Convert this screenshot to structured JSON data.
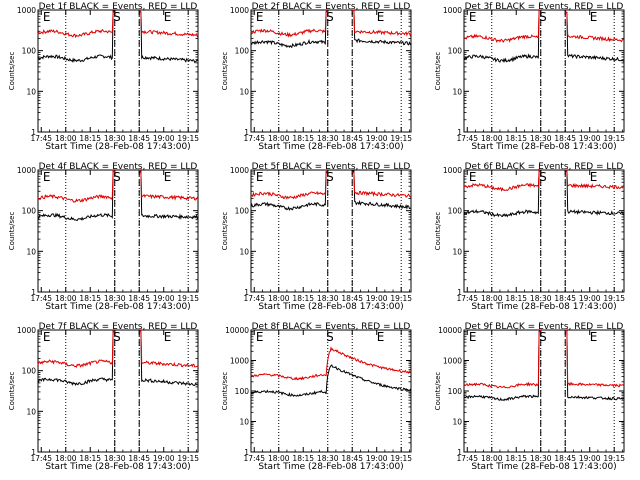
{
  "figure": {
    "xlabel": "Start Time (28-Feb-08 17:43:00)",
    "ylabel": "Counts/sec",
    "x_tick_labels": [
      "17:45",
      "18:00",
      "18:15",
      "18:30",
      "18:45",
      "19:00",
      "19:15"
    ],
    "y_tick_labels": [
      "1",
      "10",
      "100",
      "1000"
    ],
    "y_tick_labels_10k": [
      "1",
      "10",
      "100",
      "1000",
      "10000"
    ],
    "marker_labels": {
      "S": "S",
      "E": "E"
    },
    "colors": {
      "events": "#000000",
      "lld": "#e00000"
    }
  },
  "chart_data": [
    {
      "type": "line",
      "title": "Det 1f BLACK = Events, RED = LLD",
      "xlabel": "Start Time (28-Feb-08 17:43:00)",
      "ylabel": "Counts/sec",
      "y_scale": "log",
      "ylim": [
        1,
        1000
      ],
      "x_range_minutes": [
        0,
        98
      ],
      "vlines_dotted": [
        17,
        47,
        62,
        92
      ],
      "vlines_dashed": [
        47,
        62
      ],
      "markers": {
        "S": 46,
        "E": 77,
        "E_left": 3
      },
      "gap": [
        47,
        62
      ],
      "spike_at": [
        46,
        62
      ],
      "series": [
        {
          "name": "Events",
          "color": "#000000",
          "level_before": 65,
          "level_after": 70,
          "end": 55
        },
        {
          "name": "LLD",
          "color": "#e00000",
          "level_before": 270,
          "level_after": 300,
          "end": 240
        }
      ]
    },
    {
      "type": "line",
      "title": "Det 2f BLACK = Events, RED = LLD",
      "xlabel": "Start Time (28-Feb-08 17:43:00)",
      "ylabel": "Counts/sec",
      "y_scale": "log",
      "ylim": [
        1,
        1000
      ],
      "x_range_minutes": [
        0,
        98
      ],
      "vlines_dotted": [
        17,
        47,
        62,
        92
      ],
      "vlines_dashed": [
        47,
        62
      ],
      "markers": {
        "S": 46,
        "E": 77,
        "E_left": 3
      },
      "gap": [
        47,
        62
      ],
      "spike_at": [
        46,
        62
      ],
      "series": [
        {
          "name": "Events",
          "color": "#000000",
          "level_before": 150,
          "level_after": 180,
          "end": 150
        },
        {
          "name": "LLD",
          "color": "#e00000",
          "level_before": 280,
          "level_after": 300,
          "end": 260
        }
      ]
    },
    {
      "type": "line",
      "title": "Det 3f BLACK = Events, RED = LLD",
      "xlabel": "Start Time (28-Feb-08 17:43:00)",
      "ylabel": "Counts/sec",
      "y_scale": "log",
      "ylim": [
        1,
        1000
      ],
      "x_range_minutes": [
        0,
        98
      ],
      "vlines_dotted": [
        17,
        47,
        62,
        92
      ],
      "vlines_dashed": [
        47,
        62
      ],
      "markers": {
        "S": 46,
        "E": 77,
        "E_left": 3
      },
      "gap": [
        47,
        62
      ],
      "spike_at": [
        46,
        62
      ],
      "series": [
        {
          "name": "Events",
          "color": "#000000",
          "level_before": 65,
          "level_after": 75,
          "end": 60
        },
        {
          "name": "LLD",
          "color": "#e00000",
          "level_before": 200,
          "level_after": 230,
          "end": 180
        }
      ]
    },
    {
      "type": "line",
      "title": "Det 4f BLACK = Events, RED = LLD",
      "xlabel": "Start Time (28-Feb-08 17:43:00)",
      "ylabel": "Counts/sec",
      "y_scale": "log",
      "ylim": [
        1,
        1000
      ],
      "x_range_minutes": [
        0,
        98
      ],
      "vlines_dotted": [
        17,
        47,
        62,
        92
      ],
      "vlines_dashed": [
        47,
        62
      ],
      "markers": {
        "S": 46,
        "E": 77,
        "E_left": 3
      },
      "gap": [
        47,
        62
      ],
      "spike_at": [
        46,
        62
      ],
      "series": [
        {
          "name": "Events",
          "color": "#000000",
          "level_before": 70,
          "level_after": 75,
          "end": 70
        },
        {
          "name": "LLD",
          "color": "#e00000",
          "level_before": 200,
          "level_after": 230,
          "end": 200
        }
      ]
    },
    {
      "type": "line",
      "title": "Det 5f BLACK = Events, RED = LLD",
      "xlabel": "Start Time (28-Feb-08 17:43:00)",
      "ylabel": "Counts/sec",
      "y_scale": "log",
      "ylim": [
        1,
        1000
      ],
      "x_range_minutes": [
        0,
        98
      ],
      "vlines_dotted": [
        17,
        47,
        62,
        92
      ],
      "vlines_dashed": [
        47,
        62
      ],
      "markers": {
        "S": 46,
        "E": 77,
        "E_left": 3
      },
      "gap": [
        47,
        62
      ],
      "spike_at": [
        46,
        62
      ],
      "series": [
        {
          "name": "Events",
          "color": "#000000",
          "level_before": 130,
          "level_after": 160,
          "end": 120
        },
        {
          "name": "LLD",
          "color": "#e00000",
          "level_before": 240,
          "level_after": 280,
          "end": 230
        }
      ]
    },
    {
      "type": "line",
      "title": "Det 6f BLACK = Events, RED = LLD",
      "xlabel": "Start Time (28-Feb-08 17:43:00)",
      "ylabel": "Counts/sec",
      "y_scale": "log",
      "ylim": [
        1,
        1000
      ],
      "x_range_minutes": [
        0,
        98
      ],
      "vlines_dotted": [
        17,
        47,
        62,
        92
      ],
      "vlines_dashed": [
        47,
        62
      ],
      "markers": {
        "S": 46,
        "E": 77,
        "E_left": 3
      },
      "gap": [
        47,
        62
      ],
      "spike_at": [
        46,
        62
      ],
      "series": [
        {
          "name": "Events",
          "color": "#000000",
          "level_before": 85,
          "level_after": 95,
          "end": 85
        },
        {
          "name": "LLD",
          "color": "#e00000",
          "level_before": 380,
          "level_after": 420,
          "end": 380
        }
      ]
    },
    {
      "type": "line",
      "title": "Det 7f BLACK = Events, RED = LLD",
      "xlabel": "Start Time (28-Feb-08 17:43:00)",
      "ylabel": "Counts/sec",
      "y_scale": "log",
      "ylim": [
        1,
        1000
      ],
      "x_range_minutes": [
        0,
        98
      ],
      "vlines_dotted": [
        17,
        47,
        62,
        92
      ],
      "vlines_dashed": [
        47,
        62
      ],
      "markers": {
        "S": 46,
        "E": 77,
        "E_left": 3
      },
      "gap": [
        47,
        62
      ],
      "spike_at": [
        46,
        62
      ],
      "series": [
        {
          "name": "Events",
          "color": "#000000",
          "level_before": 55,
          "level_after": 60,
          "end": 45
        },
        {
          "name": "LLD",
          "color": "#e00000",
          "level_before": 150,
          "level_after": 160,
          "end": 130
        }
      ]
    },
    {
      "type": "line",
      "title": "Det 8f BLACK = Events, RED = LLD",
      "xlabel": "Start Time (28-Feb-08 17:43:00)",
      "ylabel": "Counts/sec",
      "y_scale": "log",
      "ylim": [
        1,
        10000
      ],
      "x_range_minutes": [
        0,
        98
      ],
      "vlines_dotted": [
        17,
        47,
        62,
        92
      ],
      "vlines_dashed": [],
      "markers": {
        "S": 46,
        "E": 77,
        "E_left": 3
      },
      "gap": [],
      "spike_at": [
        48
      ],
      "series": [
        {
          "name": "Events",
          "color": "#000000",
          "level_before": 85,
          "level_after": 700,
          "end": 90
        },
        {
          "name": "LLD",
          "color": "#e00000",
          "level_before": 300,
          "level_after": 2500,
          "end": 350
        }
      ]
    },
    {
      "type": "line",
      "title": "Det 9f BLACK = Events, RED = LLD",
      "xlabel": "Start Time (28-Feb-08 17:43:00)",
      "ylabel": "Counts/sec",
      "y_scale": "log",
      "ylim": [
        1,
        10000
      ],
      "x_range_minutes": [
        0,
        98
      ],
      "vlines_dotted": [
        17,
        47,
        62,
        92
      ],
      "vlines_dashed": [
        47,
        62
      ],
      "markers": {
        "S": 46,
        "E": 77,
        "E_left": 3
      },
      "gap": [
        47,
        62
      ],
      "spike_at": [
        46,
        62
      ],
      "series": [
        {
          "name": "Events",
          "color": "#000000",
          "level_before": 60,
          "level_after": 65,
          "end": 55
        },
        {
          "name": "LLD",
          "color": "#e00000",
          "level_before": 150,
          "level_after": 170,
          "end": 150
        }
      ]
    }
  ]
}
